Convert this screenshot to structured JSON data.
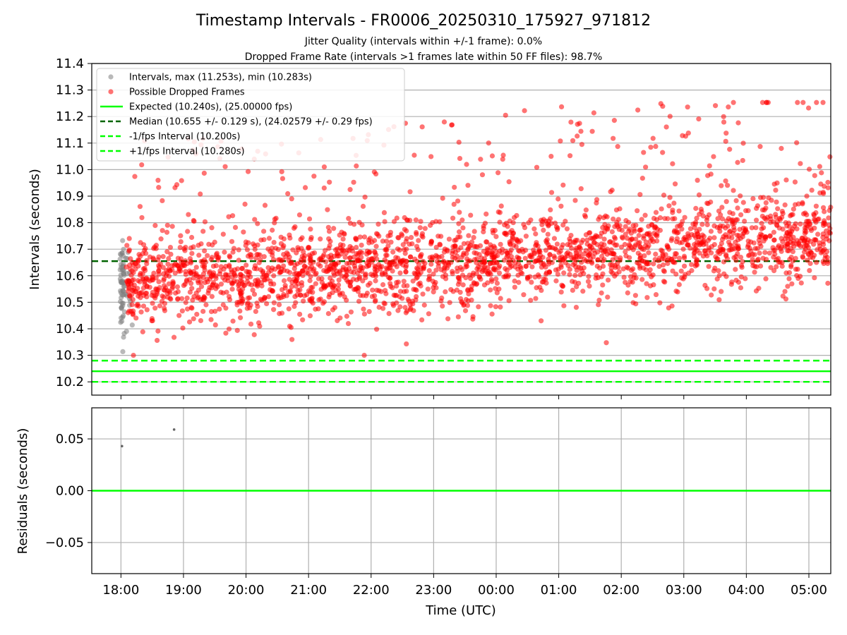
{
  "figure": {
    "title": "Timestamp Intervals - FR0006_20250310_175927_971812",
    "subtitle_1": "Jitter Quality (intervals within +/-1 frame): 0.0%",
    "subtitle_2": "Dropped Frame Rate (intervals >1 frames late within 50 FF files): 98.7%"
  },
  "chart_data": [
    {
      "type": "scatter",
      "ylabel": "Intervals (seconds)",
      "xlabel": "",
      "xlim": [
        "17:32",
        "05:21"
      ],
      "ylim": [
        10.15,
        11.4
      ],
      "grid": "horizontal",
      "legend_position": "top-left",
      "yticks": [
        "10.2",
        "10.3",
        "10.4",
        "10.5",
        "10.6",
        "10.7",
        "10.8",
        "10.9",
        "11.0",
        "11.1",
        "11.2",
        "11.3",
        "11.4"
      ],
      "xticks": [
        "18:00",
        "19:00",
        "20:00",
        "21:00",
        "22:00",
        "23:00",
        "00:00",
        "01:00",
        "02:00",
        "03:00",
        "04:00",
        "05:00"
      ],
      "legend": [
        {
          "label": "Intervals, max (11.253s), min (10.283s)",
          "marker": "circle",
          "color": "#808080"
        },
        {
          "label": "Possible Dropped Frames",
          "marker": "circle",
          "color": "#ff0000"
        },
        {
          "label": "Expected (10.240s), (25.00000 fps)",
          "line": "solid",
          "color": "#00ff00"
        },
        {
          "label": "Median (10.655 +/- 0.129 s), (24.02579 +/- 0.29 fps)",
          "line": "dashed",
          "color": "#006400"
        },
        {
          "label": "-1/fps Interval (10.200s)",
          "line": "dashed",
          "color": "#00ff00"
        },
        {
          "label": "+1/fps Interval (10.280s)",
          "line": "dashed",
          "color": "#00ff00"
        }
      ],
      "series": [
        {
          "name": "Intervals, max (11.253s), min (10.283s)",
          "color": "#808080",
          "x_range": [
            "17:59",
            "18:12"
          ],
          "y_range": [
            10.283,
            10.85
          ]
        },
        {
          "name": "Possible Dropped Frames",
          "color": "#ff0000",
          "x_range": [
            "18:05",
            "05:21"
          ],
          "y_range": [
            10.3,
            11.253
          ],
          "trend": [
            {
              "x": "18:00",
              "y": 10.57
            },
            {
              "x": "21:00",
              "y": 10.6
            },
            {
              "x": "00:00",
              "y": 10.66
            },
            {
              "x": "03:00",
              "y": 10.71
            },
            {
              "x": "05:21",
              "y": 10.75
            }
          ]
        }
      ],
      "reference_lines": [
        {
          "name": "Expected (10.240s), (25.00000 fps)",
          "y": 10.24,
          "color": "#00ff00",
          "style": "solid"
        },
        {
          "name": "Median (10.655 +/- 0.129 s), (24.02579 +/- 0.29 fps)",
          "y": 10.655,
          "color": "#006400",
          "style": "dashed"
        },
        {
          "name": "-1/fps Interval (10.200s)",
          "y": 10.2,
          "color": "#00ff00",
          "style": "dashed"
        },
        {
          "name": "+1/fps Interval (10.280s)",
          "y": 10.28,
          "color": "#00ff00",
          "style": "dashed"
        }
      ]
    },
    {
      "type": "scatter",
      "ylabel": "Residuals (seconds)",
      "xlabel": "Time (UTC)",
      "xlim": [
        "17:32",
        "05:21"
      ],
      "ylim": [
        -0.08,
        0.08
      ],
      "grid": "both",
      "yticks": [
        "0.05",
        "0.00",
        "−0.05"
      ],
      "xticks": [
        "18:00",
        "19:00",
        "20:00",
        "21:00",
        "22:00",
        "23:00",
        "00:00",
        "01:00",
        "02:00",
        "03:00",
        "04:00",
        "05:00"
      ],
      "points": [
        {
          "x": "18:01",
          "y": 0.043
        },
        {
          "x": "18:51",
          "y": 0.059
        }
      ],
      "reference_lines": [
        {
          "y": 0.0,
          "color": "#00ff00",
          "style": "solid"
        }
      ]
    }
  ]
}
